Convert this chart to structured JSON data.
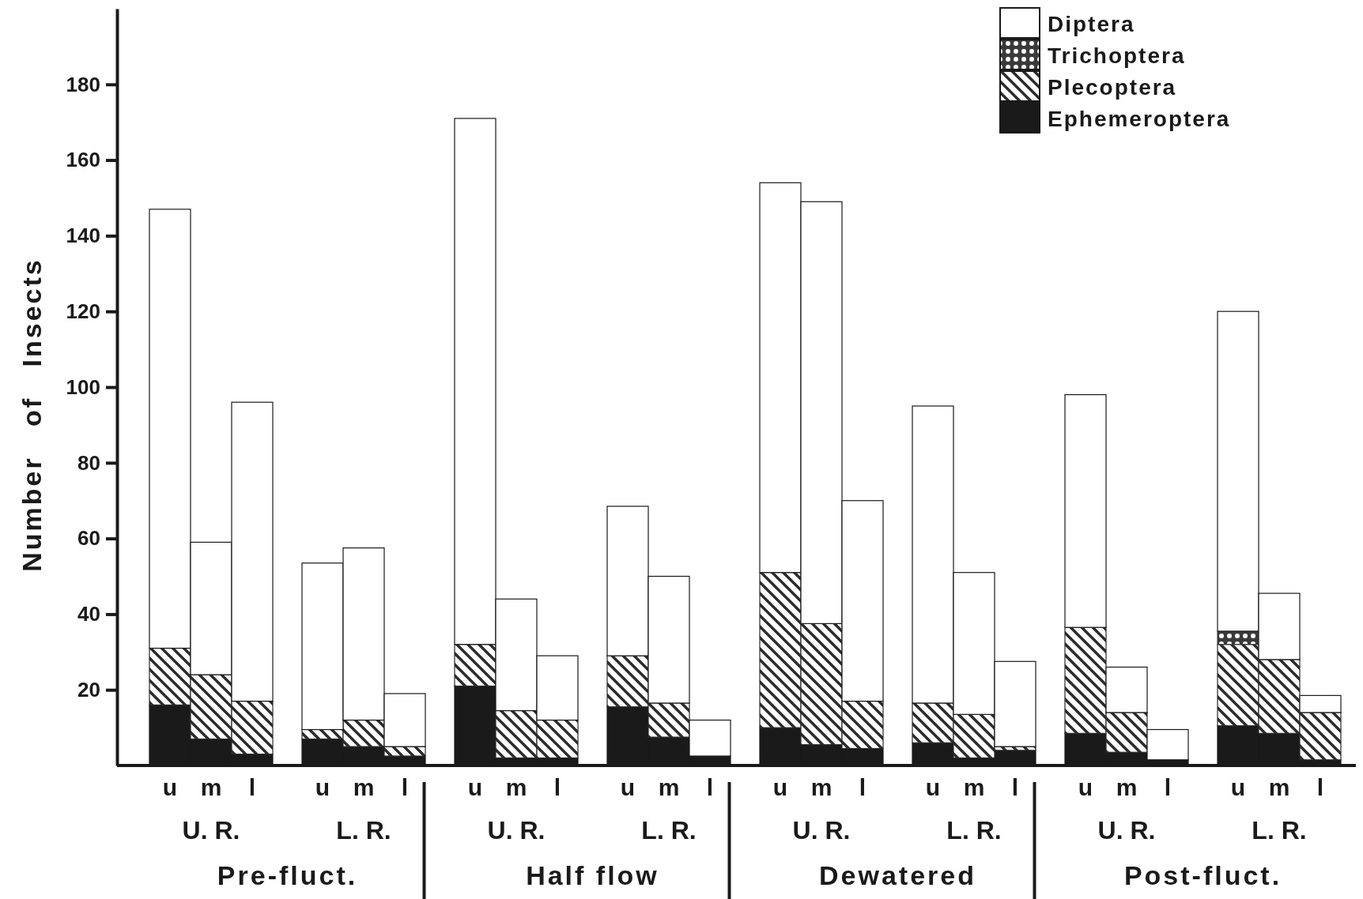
{
  "chart_data": {
    "type": "bar",
    "stacked": true,
    "ylabel": "Number   of   Insects",
    "ylim": [
      0,
      200
    ],
    "yticks": [
      20,
      40,
      60,
      80,
      100,
      120,
      140,
      160,
      180
    ],
    "legend": "top right",
    "categories": [
      "u",
      "m",
      "l",
      "u",
      "m",
      "l",
      "u",
      "m",
      "l",
      "u",
      "m",
      "l",
      "u",
      "m",
      "l",
      "u",
      "m",
      "l",
      "u",
      "m",
      "l",
      "u",
      "m",
      "l"
    ],
    "series": [
      {
        "name": "Ephemeroptera",
        "color": "#1a1a1a",
        "values": [
          16,
          7,
          3,
          7,
          5,
          2.5,
          21,
          2,
          2,
          15.5,
          7.5,
          2.5,
          10,
          5.5,
          4.5,
          6,
          2,
          4,
          8.5,
          3.5,
          1.5,
          10.5,
          8.5,
          1.5
        ]
      },
      {
        "name": "Plecoptera",
        "color": "#2b2b2b",
        "values": [
          15,
          17,
          14,
          2.5,
          7,
          2.5,
          11,
          12.5,
          10,
          13.5,
          9,
          0,
          41,
          32,
          12.5,
          10.5,
          11.5,
          1,
          28,
          10.5,
          0,
          21.5,
          19.5,
          12.5
        ]
      },
      {
        "name": "Trichoptera",
        "color": "#3a3a3a",
        "values": [
          0,
          0,
          0,
          0,
          0,
          0,
          0,
          0,
          0,
          0,
          0,
          0,
          0,
          0,
          0,
          0,
          0,
          0,
          0,
          0,
          0,
          3.5,
          0,
          0
        ]
      },
      {
        "name": "Diptera",
        "color": "#ffffff",
        "values": [
          116,
          35,
          79,
          44,
          45.5,
          14,
          139,
          29.5,
          17,
          39.5,
          33.5,
          9.5,
          103,
          111.5,
          53,
          78.5,
          37.5,
          22.5,
          61.5,
          12,
          8,
          84.5,
          17.5,
          4.5
        ]
      }
    ],
    "annotations": [
      "U. R.",
      "L. R.",
      "U. R.",
      "L. R.",
      "U. R.",
      "L. R.",
      "U. R.",
      "L. R.",
      "Pre-fluct.",
      "Half flow",
      "Dewatered",
      "Post-fluct."
    ]
  }
}
